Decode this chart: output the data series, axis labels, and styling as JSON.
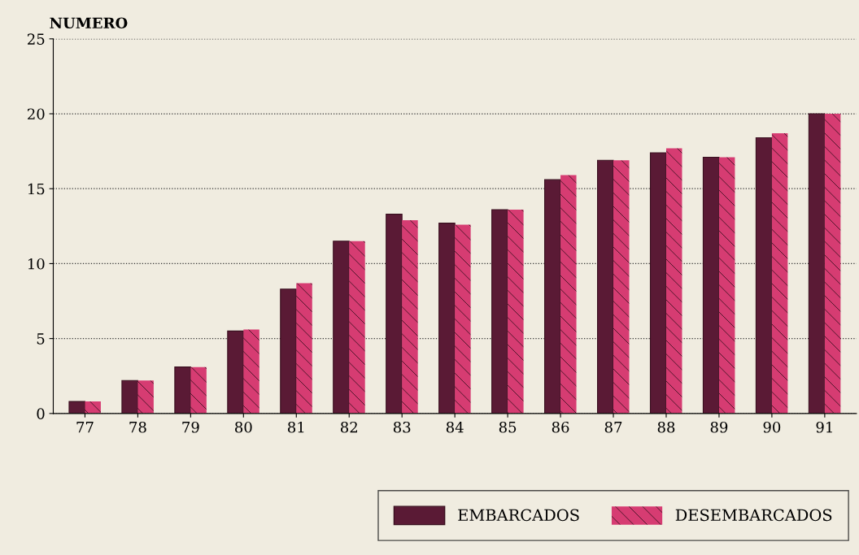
{
  "chart_data": {
    "type": "bar",
    "ylabel": "NUMERO",
    "categories": [
      "77",
      "78",
      "79",
      "80",
      "81",
      "82",
      "83",
      "84",
      "85",
      "86",
      "87",
      "88",
      "89",
      "90",
      "91"
    ],
    "series": [
      {
        "name": "EMBARCADOS",
        "color": "#5a1a35",
        "values": [
          0.8,
          2.2,
          3.1,
          5.5,
          8.3,
          11.5,
          13.3,
          12.7,
          13.6,
          15.6,
          16.9,
          17.4,
          17.1,
          18.4,
          20.0
        ]
      },
      {
        "name": "DESEMBARCADOS",
        "color": "#d63c72",
        "values": [
          0.8,
          2.2,
          3.1,
          5.6,
          8.7,
          11.5,
          12.9,
          12.6,
          13.6,
          15.9,
          16.9,
          17.7,
          17.1,
          18.7,
          20.0
        ]
      }
    ],
    "ylim": [
      0,
      25
    ],
    "yticks": [
      0,
      5,
      10,
      15,
      20,
      25
    ],
    "grid": "y",
    "legend": "bottom right"
  }
}
